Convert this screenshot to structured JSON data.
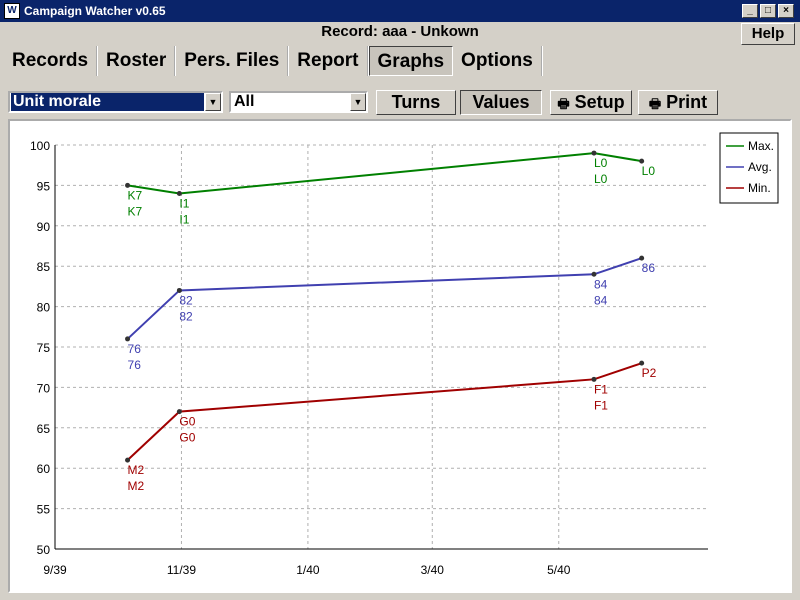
{
  "window": {
    "title": "Campaign Watcher v0.65",
    "icon": "app-icon"
  },
  "record_title": "Record: aaa - Unkown",
  "help_label": "Help",
  "menu": [
    {
      "label": "Records"
    },
    {
      "label": "Roster"
    },
    {
      "label": "Pers. Files"
    },
    {
      "label": "Report"
    },
    {
      "label": "Graphs",
      "active": true
    },
    {
      "label": "Options"
    }
  ],
  "toolbar": {
    "metric_select": "Unit morale",
    "filter_select": "All",
    "turns_label": "Turns",
    "values_label": "Values",
    "setup_label": "Setup",
    "print_label": "Print"
  },
  "colors": {
    "max": "#008000",
    "avg": "#4040b0",
    "min": "#a00000",
    "selection": "#0a246a"
  },
  "chart_data": {
    "type": "line",
    "x_ticks": [
      "9/39",
      "11/39",
      "1/40",
      "3/40",
      "5/40"
    ],
    "x_dates": [
      "1939-09-01",
      "1939-11-01",
      "1940-01-01",
      "1940-03-01",
      "1940-05-01"
    ],
    "x": [
      "1939-10-06",
      "1939-10-31",
      "1940-05-18",
      "1940-06-10"
    ],
    "ylim": [
      50,
      100
    ],
    "y_ticks": [
      50,
      55,
      60,
      65,
      70,
      75,
      80,
      85,
      90,
      95,
      100
    ],
    "grid": true,
    "legend_position": "top-right",
    "series": [
      {
        "name": "Max.",
        "values": [
          95,
          94,
          99,
          98
        ],
        "labels": [
          "K7",
          "I1",
          "L0",
          "L0"
        ]
      },
      {
        "name": "Avg.",
        "values": [
          76,
          82,
          84,
          86
        ],
        "labels": [
          "76",
          "82",
          "84",
          "86"
        ]
      },
      {
        "name": "Min.",
        "values": [
          61,
          67,
          71,
          73
        ],
        "labels": [
          "M2",
          "G0",
          "F1",
          "P2"
        ]
      }
    ]
  }
}
